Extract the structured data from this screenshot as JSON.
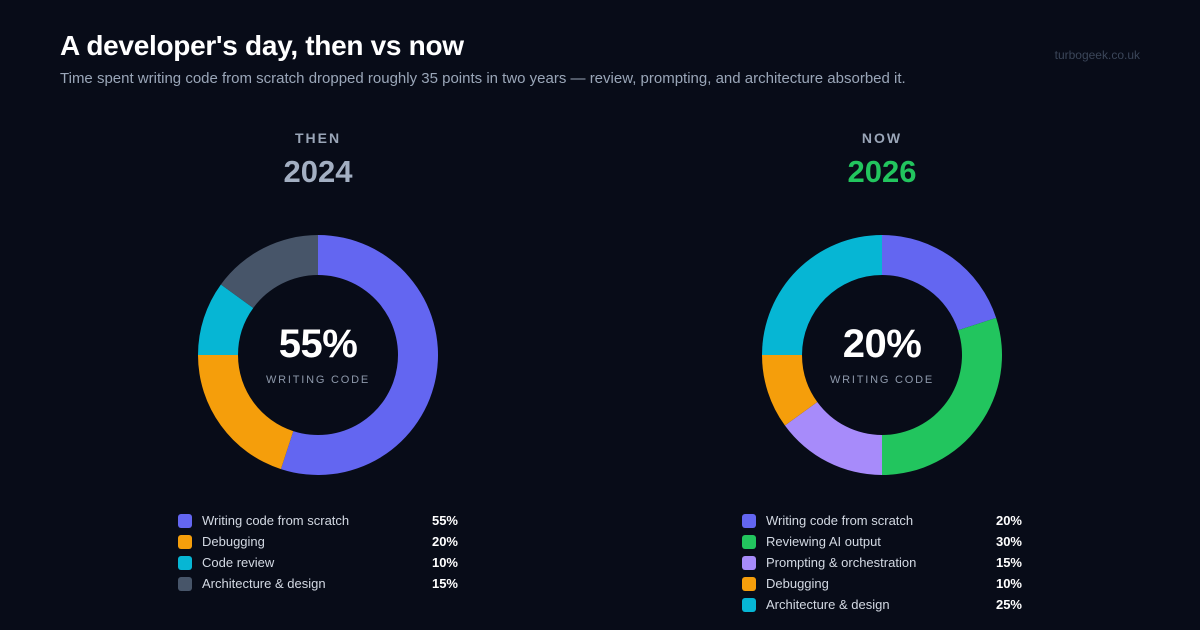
{
  "header": {
    "title": "A developer's day, then vs now",
    "subtitle": "Time spent writing code from scratch dropped roughly 35 points in two years — review, prompting, and architecture absorbed it.",
    "source": "turbogeek.co.uk"
  },
  "chart_data": [
    {
      "type": "pie",
      "donut": true,
      "era": "THEN",
      "year": "2024",
      "year_color": "#a3afc2",
      "center_value": "55%",
      "center_label": "WRITING CODE",
      "categories": [
        "Writing code from scratch",
        "Debugging",
        "Code review",
        "Architecture & design"
      ],
      "values": [
        55,
        20,
        10,
        15
      ],
      "value_labels": [
        "55%",
        "20%",
        "10%",
        "15%"
      ],
      "colors": [
        "#6366f1",
        "#f59e0b",
        "#06b6d4",
        "#475569"
      ]
    },
    {
      "type": "pie",
      "donut": true,
      "era": "NOW",
      "year": "2026",
      "year_color": "#22c55e",
      "center_value": "20%",
      "center_label": "WRITING CODE",
      "categories": [
        "Writing code from scratch",
        "Reviewing AI output",
        "Prompting & orchestration",
        "Debugging",
        "Architecture & design"
      ],
      "values": [
        20,
        30,
        15,
        10,
        25
      ],
      "value_labels": [
        "20%",
        "30%",
        "15%",
        "10%",
        "25%"
      ],
      "colors": [
        "#6366f1",
        "#22c55e",
        "#a78bfa",
        "#f59e0b",
        "#06b6d4"
      ]
    }
  ]
}
